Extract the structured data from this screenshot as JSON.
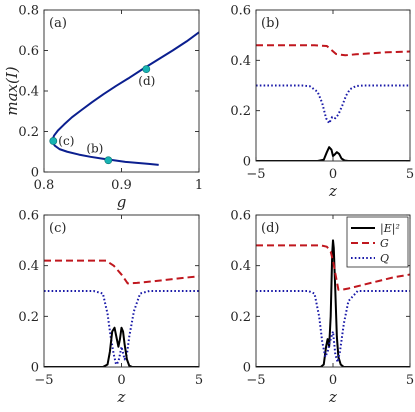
{
  "chart_data": [
    {
      "panel": "(a)",
      "type": "line",
      "xlabel": "g",
      "ylabel": "max(I)",
      "xlim": [
        0.8,
        1.0
      ],
      "ylim": [
        0,
        0.8
      ],
      "xticks": [
        "0.8",
        "0.9",
        "1"
      ],
      "yticks": [
        "0",
        "0.2",
        "0.4",
        "0.6",
        "0.8"
      ],
      "grid": false,
      "colors": {
        "curve": "#0b1f8f",
        "marker": "#17b3b3"
      },
      "series": [
        {
          "x": [
            0.948,
            0.935,
            0.92,
            0.905,
            0.89,
            0.875,
            0.86,
            0.845,
            0.83,
            0.82,
            0.814,
            0.811,
            0.811,
            0.813,
            0.818,
            0.826,
            0.836,
            0.848,
            0.862,
            0.877,
            0.893,
            0.91,
            0.928,
            0.947,
            0.966,
            0.984,
            1.0
          ],
          "y": [
            0.035,
            0.04,
            0.045,
            0.05,
            0.058,
            0.066,
            0.075,
            0.086,
            0.1,
            0.113,
            0.13,
            0.145,
            0.16,
            0.18,
            0.205,
            0.235,
            0.27,
            0.305,
            0.345,
            0.385,
            0.425,
            0.465,
            0.51,
            0.555,
            0.6,
            0.645,
            0.69
          ]
        }
      ],
      "markers": [
        {
          "label": "(c)",
          "x": 0.812,
          "y": 0.153
        },
        {
          "label": "(b)",
          "x": 0.883,
          "y": 0.058
        },
        {
          "label": "(d)",
          "x": 0.932,
          "y": 0.508
        }
      ]
    },
    {
      "panel": "(b)",
      "type": "line",
      "xlabel": "z",
      "ylabel": "",
      "xlim": [
        -5,
        5
      ],
      "ylim": [
        0,
        0.6
      ],
      "xticks": [
        "-5",
        "0",
        "5"
      ],
      "yticks": [
        "0",
        "0.2",
        "0.4",
        "0.6"
      ],
      "grid": false,
      "series": [
        {
          "key": "G",
          "color": "#c0171e",
          "style": "dashed",
          "x": [
            -5,
            -1.2,
            -0.4,
            0.2,
            0.8,
            1.5,
            2.5,
            3.5,
            5
          ],
          "y": [
            0.46,
            0.46,
            0.457,
            0.425,
            0.42,
            0.424,
            0.428,
            0.432,
            0.435
          ]
        },
        {
          "key": "Q",
          "color": "#1a1aa8",
          "style": "dotted",
          "x": [
            -5,
            -2,
            -1.5,
            -1.0,
            -0.7,
            -0.45,
            -0.25,
            -0.05,
            0.15,
            0.35,
            0.6,
            0.85,
            1.1,
            1.5,
            2,
            5
          ],
          "y": [
            0.3,
            0.3,
            0.297,
            0.275,
            0.23,
            0.17,
            0.15,
            0.175,
            0.17,
            0.185,
            0.22,
            0.26,
            0.285,
            0.298,
            0.3,
            0.3
          ]
        },
        {
          "key": "E",
          "color": "#000000",
          "style": "solid",
          "x": [
            -5,
            -1.0,
            -0.6,
            -0.4,
            -0.25,
            -0.1,
            0.0,
            0.1,
            0.25,
            0.4,
            0.55,
            0.75,
            1.0,
            5
          ],
          "y": [
            0,
            0,
            0.005,
            0.035,
            0.055,
            0.045,
            0.02,
            0.025,
            0.035,
            0.028,
            0.01,
            0.002,
            0,
            0
          ]
        }
      ]
    },
    {
      "panel": "(c)",
      "type": "line",
      "xlabel": "z",
      "ylabel": "",
      "xlim": [
        -5,
        5
      ],
      "ylim": [
        0,
        0.6
      ],
      "xticks": [
        "-5",
        "0",
        "5"
      ],
      "yticks": [
        "0",
        "0.2",
        "0.4",
        "0.6"
      ],
      "grid": false,
      "series": [
        {
          "key": "G",
          "color": "#c0171e",
          "style": "dashed",
          "x": [
            -5,
            -1.0,
            -0.5,
            0,
            0.4,
            1.0,
            2,
            3,
            4,
            5
          ],
          "y": [
            0.42,
            0.42,
            0.4,
            0.365,
            0.33,
            0.332,
            0.338,
            0.345,
            0.352,
            0.358
          ]
        },
        {
          "key": "Q",
          "color": "#1a1aa8",
          "style": "dotted",
          "x": [
            -5,
            -1.8,
            -1.2,
            -0.9,
            -0.7,
            -0.5,
            -0.35,
            -0.2,
            0.0,
            0.2,
            0.35,
            0.5,
            0.8,
            1.2,
            1.8,
            5
          ],
          "y": [
            0.3,
            0.3,
            0.29,
            0.21,
            0.12,
            0.05,
            0.01,
            0.02,
            0.08,
            0.03,
            0.05,
            0.12,
            0.22,
            0.29,
            0.3,
            0.3
          ]
        },
        {
          "key": "E",
          "color": "#000000",
          "style": "solid",
          "x": [
            -5,
            -1.2,
            -0.9,
            -0.75,
            -0.6,
            -0.45,
            -0.3,
            -0.2,
            -0.1,
            0.0,
            0.1,
            0.2,
            0.35,
            0.5,
            0.7,
            1.0,
            5
          ],
          "y": [
            0,
            0,
            0.01,
            0.06,
            0.14,
            0.155,
            0.11,
            0.08,
            0.11,
            0.155,
            0.14,
            0.09,
            0.03,
            0.005,
            0,
            0,
            0
          ]
        }
      ]
    },
    {
      "panel": "(d)",
      "type": "line",
      "xlabel": "z",
      "ylabel": "",
      "xlim": [
        -5,
        5
      ],
      "ylim": [
        0,
        0.6
      ],
      "xticks": [
        "-5",
        "0",
        "5"
      ],
      "yticks": [
        "0",
        "0.2",
        "0.4",
        "0.6"
      ],
      "grid": false,
      "legend": {
        "placement": "top-right",
        "entries": [
          "|E|²",
          "G",
          "Q"
        ]
      },
      "series": [
        {
          "key": "E",
          "name": "|E|²",
          "color": "#000000",
          "style": "solid",
          "x": [
            -5,
            -0.8,
            -0.6,
            -0.45,
            -0.35,
            -0.25,
            -0.15,
            -0.05,
            0.0,
            0.05,
            0.15,
            0.25,
            0.35,
            0.5,
            0.7,
            5
          ],
          "y": [
            0,
            0,
            0.01,
            0.08,
            0.11,
            0.08,
            0.2,
            0.45,
            0.5,
            0.47,
            0.3,
            0.12,
            0.04,
            0.01,
            0,
            0
          ]
        },
        {
          "key": "G",
          "name": "G",
          "color": "#c0171e",
          "style": "dashed",
          "x": [
            -5,
            -0.8,
            -0.4,
            -0.15,
            0.0,
            0.15,
            0.35,
            0.6,
            1.0,
            2,
            3,
            4,
            5
          ],
          "y": [
            0.48,
            0.48,
            0.475,
            0.455,
            0.42,
            0.37,
            0.305,
            0.305,
            0.31,
            0.325,
            0.34,
            0.355,
            0.365
          ]
        },
        {
          "key": "Q",
          "name": "Q",
          "color": "#1a1aa8",
          "style": "dotted",
          "x": [
            -5,
            -1.6,
            -1.2,
            -0.9,
            -0.7,
            -0.5,
            -0.35,
            -0.2,
            0.0,
            0.15,
            0.3,
            0.45,
            0.7,
            1.0,
            1.6,
            5
          ],
          "y": [
            0.3,
            0.3,
            0.29,
            0.2,
            0.1,
            0.04,
            0.06,
            0.1,
            0.14,
            0.05,
            0.02,
            0.06,
            0.17,
            0.26,
            0.3,
            0.3
          ]
        }
      ]
    }
  ]
}
